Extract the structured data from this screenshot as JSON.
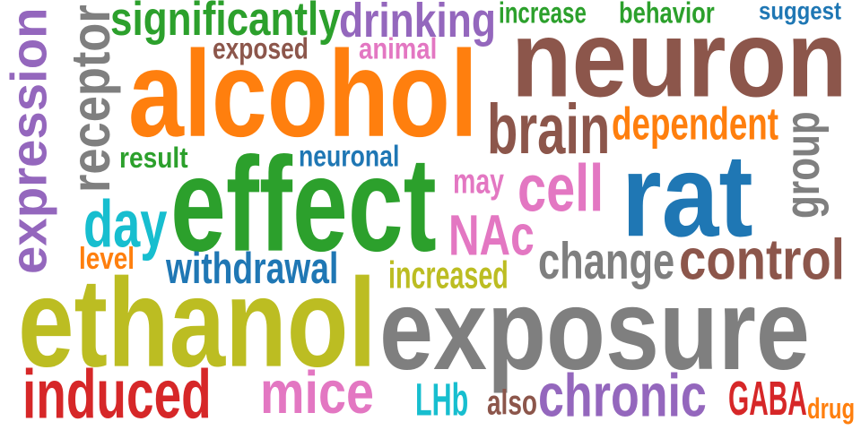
{
  "words": [
    {
      "text": "neuron",
      "color": "#8c564b"
    },
    {
      "text": "alcohol",
      "color": "#ff7f0e"
    },
    {
      "text": "effect",
      "color": "#2ca02c"
    },
    {
      "text": "rat",
      "color": "#1f77b4"
    },
    {
      "text": "ethanol",
      "color": "#bcbd22"
    },
    {
      "text": "exposure",
      "color": "#7f7f7f"
    },
    {
      "text": "expression",
      "color": "#9467bd",
      "orientation": "vertical"
    },
    {
      "text": "receptor",
      "color": "#7f7f7f",
      "orientation": "vertical"
    },
    {
      "text": "significantly",
      "color": "#2ca02c"
    },
    {
      "text": "drinking",
      "color": "#9467bd"
    },
    {
      "text": "increase",
      "color": "#2ca02c"
    },
    {
      "text": "behavior",
      "color": "#2ca02c"
    },
    {
      "text": "suggest",
      "color": "#1f77b4"
    },
    {
      "text": "exposed",
      "color": "#8c564b"
    },
    {
      "text": "animal",
      "color": "#e377c2"
    },
    {
      "text": "brain",
      "color": "#8c564b"
    },
    {
      "text": "dependent",
      "color": "#ff7f0e"
    },
    {
      "text": "group",
      "color": "#7f7f7f",
      "orientation": "vertical"
    },
    {
      "text": "result",
      "color": "#2ca02c"
    },
    {
      "text": "neuronal",
      "color": "#1f77b4"
    },
    {
      "text": "may",
      "color": "#e377c2"
    },
    {
      "text": "cell",
      "color": "#e377c2"
    },
    {
      "text": "day",
      "color": "#17becf"
    },
    {
      "text": "NAc",
      "color": "#e377c2"
    },
    {
      "text": "change",
      "color": "#7f7f7f"
    },
    {
      "text": "control",
      "color": "#8c564b"
    },
    {
      "text": "level",
      "color": "#ff7f0e"
    },
    {
      "text": "withdrawal",
      "color": "#1f77b4"
    },
    {
      "text": "increased",
      "color": "#bcbd22"
    },
    {
      "text": "induced",
      "color": "#d62728"
    },
    {
      "text": "mice",
      "color": "#e377c2"
    },
    {
      "text": "LHb",
      "color": "#17becf"
    },
    {
      "text": "also",
      "color": "#8c564b"
    },
    {
      "text": "chronic",
      "color": "#9467bd"
    },
    {
      "text": "GABA",
      "color": "#d62728"
    },
    {
      "text": "drug",
      "color": "#ff7f0e"
    }
  ]
}
